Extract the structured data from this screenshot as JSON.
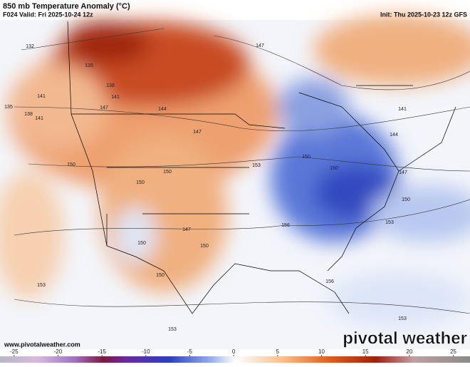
{
  "header": {
    "title": "850 mb Temperature Anomaly (°C)",
    "valid": "F024 Valid: Fri 2025-10-24 12z",
    "init": "Init: Thu 2025-10-23 12z GFS"
  },
  "contour_labels": [
    132,
    135,
    138,
    141,
    141,
    144,
    147,
    147,
    150,
    150,
    150,
    147,
    150,
    150,
    150,
    153,
    153,
    147,
    153,
    150,
    150,
    156,
    156,
    153,
    150,
    141,
    144,
    147,
    153,
    135,
    138,
    141
  ],
  "footer": {
    "url": "www.pivotalweather.com",
    "brand": "pivotal weather"
  },
  "colorbar": {
    "lim": [
      -26.6,
      26.9
    ],
    "ticks": [
      -25,
      -20,
      -15,
      -10,
      -5,
      0,
      5,
      10,
      15,
      20,
      25
    ]
  }
}
